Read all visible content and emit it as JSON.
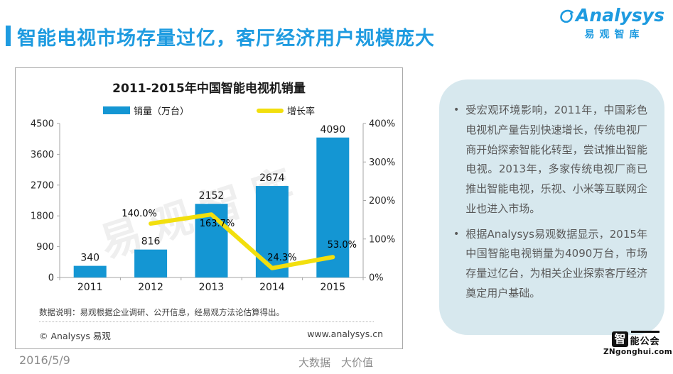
{
  "header": {
    "title": "智能电视市场存量过亿，客厅经济用户规模庞大",
    "brand_name": "Analysys",
    "brand_sub": "易观智库"
  },
  "colors": {
    "accent_blue": "#1e9be0",
    "bar_blue": "#1496d3",
    "line_yellow": "#f2df0d",
    "panel_bg": "#d7e8ee"
  },
  "chart_data": {
    "type": "bar+line",
    "title": "2011-2015年中国智能电视机销量",
    "categories": [
      "2011",
      "2012",
      "2013",
      "2014",
      "2015"
    ],
    "series": [
      {
        "name": "销量（万台）",
        "type": "bar",
        "axis": "left",
        "color": "#1496d3",
        "values": [
          340,
          816,
          2152,
          2674,
          4090
        ],
        "labels": [
          "340",
          "816",
          "2152",
          "2674",
          "4090"
        ]
      },
      {
        "name": "增长率",
        "type": "line",
        "axis": "right",
        "color": "#f2df0d",
        "values": [
          null,
          140.0,
          163.7,
          24.3,
          53.0
        ],
        "labels": [
          "",
          "140.0%",
          "163.7%",
          "24.3%",
          "53.0%"
        ]
      }
    ],
    "left_axis": {
      "min": 0,
      "max": 4500,
      "ticks": [
        "0",
        "900",
        "1800",
        "2700",
        "3600",
        "4500"
      ]
    },
    "right_axis": {
      "min": 0,
      "max": 400,
      "ticks": [
        "0%",
        "100%",
        "200%",
        "300%",
        "400%"
      ]
    },
    "legend_position": "top",
    "grid": false
  },
  "chart_card": {
    "note": "数据说明：易观根据企业调研、公开信息，经易观方法论估算得出。",
    "copyright": "© Analysys 易观",
    "website": "www.analysys.cn",
    "watermark": "易观智库"
  },
  "insights": {
    "bullets": [
      "受宏观环境影响，2011年，中国彩色电视机产量告别快速增长，传统电视厂商开始探索智能化转型，尝试推出智能电视。2013年，多家传统电视厂商已推出智能电视，乐视、小米等互联网企业也进入市场。",
      "根据Analysys易观数据显示，2015年中国智能电视销量为4090万台，市场存量过亿台，为相关企业探索客厅经济奠定用户基础。"
    ]
  },
  "footer": {
    "date": "2016/5/9",
    "slogan": "大数据　大价值"
  },
  "zn_logo": {
    "name_left": "智",
    "name_right": "能公会",
    "url": "ZNgonghui.com"
  }
}
